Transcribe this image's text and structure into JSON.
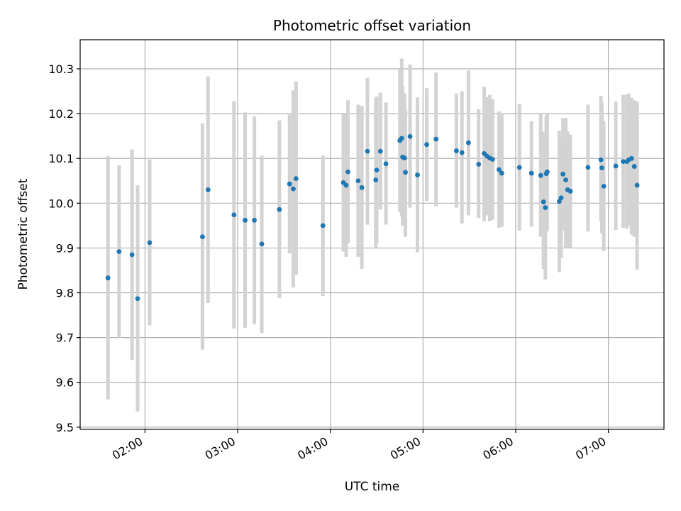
{
  "chart_data": {
    "type": "scatter",
    "title": "Photometric offset variation",
    "xlabel": "UTC time",
    "ylabel": "Photometric offset",
    "x_unit": "hours UTC",
    "xlim": [
      1.3,
      7.6
    ],
    "ylim": [
      9.495,
      10.365
    ],
    "grid": true,
    "x_ticks": [
      {
        "value": 2.0,
        "label": "02:00"
      },
      {
        "value": 3.0,
        "label": "03:00"
      },
      {
        "value": 4.0,
        "label": "04:00"
      },
      {
        "value": 5.0,
        "label": "05:00"
      },
      {
        "value": 6.0,
        "label": "06:00"
      },
      {
        "value": 7.0,
        "label": "07:00"
      }
    ],
    "y_ticks": [
      {
        "value": 9.5,
        "label": "9.5"
      },
      {
        "value": 9.6,
        "label": "9.6"
      },
      {
        "value": 9.7,
        "label": "9.7"
      },
      {
        "value": 9.8,
        "label": "9.8"
      },
      {
        "value": 9.9,
        "label": "9.9"
      },
      {
        "value": 10.0,
        "label": "10.0"
      },
      {
        "value": 10.1,
        "label": "10.1"
      },
      {
        "value": 10.2,
        "label": "10.2"
      },
      {
        "value": 10.3,
        "label": "10.3"
      }
    ],
    "series": [
      {
        "name": "Photometric offset",
        "marker_color": "#1f77b4",
        "errorbar_color": "#d3d3d3",
        "points": [
          {
            "x": 1.6,
            "y": 9.833,
            "ylow": 9.562,
            "yhigh": 10.105
          },
          {
            "x": 1.72,
            "y": 9.892,
            "ylow": 9.7,
            "yhigh": 10.085
          },
          {
            "x": 1.86,
            "y": 9.885,
            "ylow": 9.65,
            "yhigh": 10.12
          },
          {
            "x": 1.92,
            "y": 9.787,
            "ylow": 9.535,
            "yhigh": 10.04
          },
          {
            "x": 2.05,
            "y": 9.912,
            "ylow": 9.727,
            "yhigh": 10.098
          },
          {
            "x": 2.62,
            "y": 9.925,
            "ylow": 9.673,
            "yhigh": 10.178
          },
          {
            "x": 2.68,
            "y": 10.03,
            "ylow": 9.777,
            "yhigh": 10.283
          },
          {
            "x": 2.96,
            "y": 9.974,
            "ylow": 9.72,
            "yhigh": 10.228
          },
          {
            "x": 3.08,
            "y": 9.962,
            "ylow": 9.722,
            "yhigh": 10.203
          },
          {
            "x": 3.18,
            "y": 9.962,
            "ylow": 9.73,
            "yhigh": 10.194
          },
          {
            "x": 3.26,
            "y": 9.909,
            "ylow": 9.71,
            "yhigh": 10.106
          },
          {
            "x": 3.45,
            "y": 9.986,
            "ylow": 9.788,
            "yhigh": 10.185
          },
          {
            "x": 3.56,
            "y": 10.043,
            "ylow": 9.888,
            "yhigh": 10.198
          },
          {
            "x": 3.6,
            "y": 10.032,
            "ylow": 9.812,
            "yhigh": 10.252
          },
          {
            "x": 3.63,
            "y": 10.055,
            "ylow": 9.84,
            "yhigh": 10.272
          },
          {
            "x": 3.92,
            "y": 9.95,
            "ylow": 9.793,
            "yhigh": 10.107
          },
          {
            "x": 4.14,
            "y": 10.046,
            "ylow": 9.892,
            "yhigh": 10.2
          },
          {
            "x": 4.17,
            "y": 10.04,
            "ylow": 9.88,
            "yhigh": 10.2
          },
          {
            "x": 4.19,
            "y": 10.07,
            "ylow": 9.91,
            "yhigh": 10.23
          },
          {
            "x": 4.3,
            "y": 10.05,
            "ylow": 9.88,
            "yhigh": 10.22
          },
          {
            "x": 4.34,
            "y": 10.035,
            "ylow": 9.853,
            "yhigh": 10.217
          },
          {
            "x": 4.4,
            "y": 10.116,
            "ylow": 9.952,
            "yhigh": 10.28
          },
          {
            "x": 4.49,
            "y": 10.052,
            "ylow": 9.9,
            "yhigh": 10.235
          },
          {
            "x": 4.5,
            "y": 10.074,
            "ylow": 9.91,
            "yhigh": 10.238
          },
          {
            "x": 4.54,
            "y": 10.116,
            "ylow": 9.986,
            "yhigh": 10.247
          },
          {
            "x": 4.6,
            "y": 10.088,
            "ylow": 9.952,
            "yhigh": 10.225
          },
          {
            "x": 4.75,
            "y": 10.14,
            "ylow": 9.98,
            "yhigh": 10.3
          },
          {
            "x": 4.77,
            "y": 10.145,
            "ylow": 9.97,
            "yhigh": 10.323
          },
          {
            "x": 4.78,
            "y": 10.103,
            "ylow": 9.95,
            "yhigh": 10.26
          },
          {
            "x": 4.8,
            "y": 10.101,
            "ylow": 9.96,
            "yhigh": 10.245
          },
          {
            "x": 4.81,
            "y": 10.069,
            "ylow": 9.925,
            "yhigh": 10.21
          },
          {
            "x": 4.86,
            "y": 10.149,
            "ylow": 9.99,
            "yhigh": 10.31
          },
          {
            "x": 4.94,
            "y": 10.063,
            "ylow": 9.89,
            "yhigh": 10.236
          },
          {
            "x": 5.04,
            "y": 10.131,
            "ylow": 10.005,
            "yhigh": 10.257
          },
          {
            "x": 5.14,
            "y": 10.143,
            "ylow": 9.993,
            "yhigh": 10.292
          },
          {
            "x": 5.36,
            "y": 10.117,
            "ylow": 9.99,
            "yhigh": 10.245
          },
          {
            "x": 5.42,
            "y": 10.113,
            "ylow": 9.955,
            "yhigh": 10.25
          },
          {
            "x": 5.49,
            "y": 10.135,
            "ylow": 9.973,
            "yhigh": 10.296
          },
          {
            "x": 5.6,
            "y": 10.087,
            "ylow": 9.967,
            "yhigh": 10.21
          },
          {
            "x": 5.66,
            "y": 10.111,
            "ylow": 9.96,
            "yhigh": 10.26
          },
          {
            "x": 5.69,
            "y": 10.105,
            "ylow": 9.973,
            "yhigh": 10.237
          },
          {
            "x": 5.72,
            "y": 10.101,
            "ylow": 9.96,
            "yhigh": 10.242
          },
          {
            "x": 5.75,
            "y": 10.098,
            "ylow": 9.963,
            "yhigh": 10.232
          },
          {
            "x": 5.82,
            "y": 10.075,
            "ylow": 9.945,
            "yhigh": 10.205
          },
          {
            "x": 5.85,
            "y": 10.067,
            "ylow": 9.947,
            "yhigh": 10.2
          },
          {
            "x": 6.04,
            "y": 10.08,
            "ylow": 9.939,
            "yhigh": 10.222
          },
          {
            "x": 6.17,
            "y": 10.067,
            "ylow": 9.948,
            "yhigh": 10.183
          },
          {
            "x": 6.27,
            "y": 10.062,
            "ylow": 9.925,
            "yhigh": 10.2
          },
          {
            "x": 6.3,
            "y": 10.003,
            "ylow": 9.853,
            "yhigh": 10.16
          },
          {
            "x": 6.32,
            "y": 9.99,
            "ylow": 9.83,
            "yhigh": 10.15
          },
          {
            "x": 6.33,
            "y": 10.066,
            "ylow": 9.935,
            "yhigh": 10.195
          },
          {
            "x": 6.34,
            "y": 10.07,
            "ylow": 9.94,
            "yhigh": 10.202
          },
          {
            "x": 6.47,
            "y": 10.004,
            "ylow": 9.846,
            "yhigh": 10.162
          },
          {
            "x": 6.49,
            "y": 10.012,
            "ylow": 9.878,
            "yhigh": 10.145
          },
          {
            "x": 6.51,
            "y": 10.065,
            "ylow": 9.94,
            "yhigh": 10.19
          },
          {
            "x": 6.54,
            "y": 10.052,
            "ylow": 9.9,
            "yhigh": 10.19
          },
          {
            "x": 6.56,
            "y": 10.03,
            "ylow": 9.9,
            "yhigh": 10.16
          },
          {
            "x": 6.59,
            "y": 10.027,
            "ylow": 9.9,
            "yhigh": 10.153
          },
          {
            "x": 6.78,
            "y": 10.08,
            "ylow": 9.937,
            "yhigh": 10.22
          },
          {
            "x": 6.92,
            "y": 10.097,
            "ylow": 9.96,
            "yhigh": 10.24
          },
          {
            "x": 6.93,
            "y": 10.079,
            "ylow": 9.933,
            "yhigh": 10.225
          },
          {
            "x": 6.95,
            "y": 10.038,
            "ylow": 9.893,
            "yhigh": 10.183
          },
          {
            "x": 7.08,
            "y": 10.083,
            "ylow": 9.94,
            "yhigh": 10.227
          },
          {
            "x": 7.16,
            "y": 10.093,
            "ylow": 9.945,
            "yhigh": 10.242
          },
          {
            "x": 7.2,
            "y": 10.093,
            "ylow": 9.943,
            "yhigh": 10.243
          },
          {
            "x": 7.22,
            "y": 10.097,
            "ylow": 9.95,
            "yhigh": 10.245
          },
          {
            "x": 7.25,
            "y": 10.1,
            "ylow": 9.93,
            "yhigh": 10.235
          },
          {
            "x": 7.28,
            "y": 10.082,
            "ylow": 9.925,
            "yhigh": 10.23
          },
          {
            "x": 7.31,
            "y": 10.04,
            "ylow": 9.852,
            "yhigh": 10.227
          }
        ]
      }
    ]
  }
}
